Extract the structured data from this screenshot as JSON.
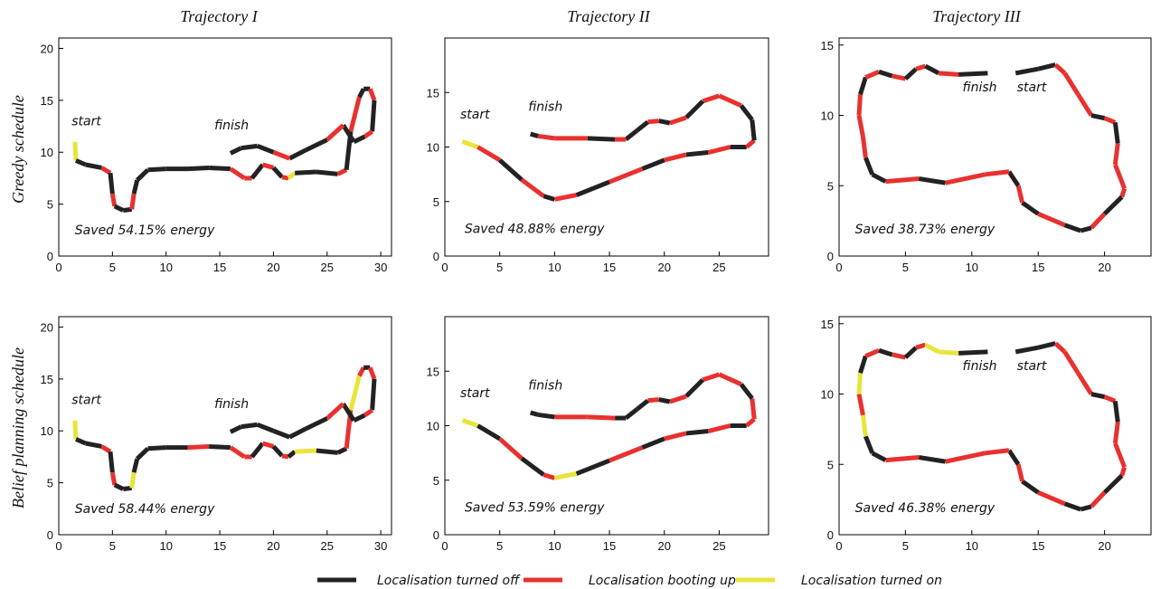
{
  "colors": {
    "off": "#222222",
    "booting": "#e8312f",
    "on": "#e9e43a"
  },
  "column_titles": [
    "Trajectory I",
    "Trajectory II",
    "Trajectory III"
  ],
  "row_titles": [
    "Greedy schedule",
    "Belief planning schedule"
  ],
  "legend": {
    "items": [
      {
        "label": "Localisation turned off",
        "color_key": "off"
      },
      {
        "label": "Localisation booting up",
        "color_key": "booting"
      },
      {
        "label": "Localisation turned on",
        "color_key": "on"
      }
    ]
  },
  "chart_data": [
    {
      "type": "line",
      "row": "Greedy schedule",
      "column": "Trajectory I",
      "xlim": [
        0,
        31
      ],
      "ylim": [
        0,
        21
      ],
      "xticks": [
        0,
        5,
        10,
        15,
        20,
        25,
        30
      ],
      "yticks": [
        0,
        5,
        10,
        15,
        20
      ],
      "annotations": [
        "start",
        "finish",
        "Saved 54.15% energy"
      ],
      "x": [
        1.5,
        1.6,
        2.5,
        4,
        4.8,
        5,
        5.2,
        6,
        6.8,
        7,
        7.3,
        8.3,
        10,
        12,
        14,
        16,
        17.3,
        18,
        19,
        20,
        20.8,
        21.4,
        22,
        24,
        26,
        26.8,
        27.2,
        28,
        28.4,
        29,
        29.4,
        29.2,
        28.5,
        27.5,
        26.5,
        25,
        23,
        21.5,
        20,
        18.5,
        17,
        16
      ],
      "y": [
        11,
        9.2,
        8.8,
        8.5,
        8,
        6,
        4.8,
        4.4,
        4.5,
        6,
        7.3,
        8.3,
        8.4,
        8.4,
        8.5,
        8.4,
        7.5,
        7.5,
        8.8,
        8.5,
        7.6,
        7.5,
        8,
        8.1,
        7.9,
        8.3,
        12,
        15.3,
        16.1,
        16.1,
        15,
        12,
        11.5,
        11,
        12.6,
        11.2,
        10.2,
        9.4,
        10,
        10.6,
        10.4,
        9.9
      ],
      "states": [
        "on",
        "off",
        "off",
        "booting",
        "off",
        "booting",
        "off",
        "off",
        "booting",
        "off",
        "off",
        "off",
        "off",
        "off",
        "off",
        "booting",
        "booting",
        "off",
        "booting",
        "off",
        "booting",
        "on",
        "off",
        "off",
        "booting",
        "off",
        "booting",
        "off",
        "off",
        "booting",
        "off",
        "booting",
        "off",
        "off",
        "booting",
        "off",
        "off",
        "booting",
        "off",
        "off",
        "off",
        "off"
      ]
    },
    {
      "type": "line",
      "row": "Greedy schedule",
      "column": "Trajectory II",
      "xlim": [
        0,
        29.5
      ],
      "ylim": [
        0,
        20
      ],
      "xticks": [
        0,
        5,
        10,
        15,
        20,
        25
      ],
      "yticks": [
        0,
        5,
        10,
        15
      ],
      "annotations": [
        "start",
        "finish",
        "Saved 48.88% energy"
      ],
      "x": [
        1.6,
        3,
        5,
        7,
        9,
        10,
        12,
        15,
        18,
        20,
        22,
        24,
        26,
        27.5,
        28.2,
        28,
        27,
        25,
        23.5,
        22,
        20.5,
        19.5,
        18.5,
        17.5,
        16.5,
        15.5,
        13,
        10,
        8.5,
        7.8
      ],
      "y": [
        10.5,
        10,
        8.8,
        7,
        5.5,
        5.2,
        5.6,
        6.8,
        8,
        8.8,
        9.3,
        9.5,
        10,
        10,
        10.6,
        12.5,
        13.8,
        14.7,
        14.2,
        12.7,
        12.2,
        12.4,
        12.3,
        11.5,
        10.7,
        10.7,
        10.8,
        10.8,
        11,
        11.2
      ],
      "states": [
        "on",
        "booting",
        "off",
        "booting",
        "off",
        "booting",
        "off",
        "booting",
        "off",
        "booting",
        "off",
        "booting",
        "off",
        "booting",
        "off",
        "off",
        "booting",
        "booting",
        "off",
        "booting",
        "off",
        "booting",
        "off",
        "off",
        "booting",
        "off",
        "booting",
        "booting",
        "off",
        "off"
      ]
    },
    {
      "type": "line",
      "row": "Greedy schedule",
      "column": "Trajectory III",
      "xlim": [
        0,
        23.5
      ],
      "ylim": [
        0,
        15.5
      ],
      "xticks": [
        0,
        5,
        10,
        15,
        20
      ],
      "yticks": [
        0,
        5,
        10,
        15
      ],
      "annotations": [
        "finish",
        "start",
        "Saved 38.73% energy"
      ],
      "x": [
        13.3,
        15,
        16.3,
        17,
        18,
        19,
        20,
        20.8,
        21,
        20.8,
        21.5,
        21.3,
        20,
        19,
        18.2,
        17,
        15,
        13.8,
        13.5,
        12.8,
        11,
        8,
        6,
        3.5,
        2.5,
        2,
        1.8,
        1.5,
        1.6,
        2,
        3,
        4,
        5,
        5.8,
        6.5,
        7.5,
        9,
        11.2
      ],
      "y": [
        13,
        13.3,
        13.6,
        13,
        11.5,
        10,
        9.8,
        9.5,
        8,
        6.5,
        4.8,
        4.2,
        3,
        2,
        1.8,
        2.2,
        3,
        3.8,
        5,
        6,
        5.8,
        5.2,
        5.5,
        5.3,
        5.8,
        7,
        8.5,
        10,
        11.5,
        12.7,
        13.1,
        12.8,
        12.6,
        13.3,
        13.5,
        13,
        12.9,
        13
      ],
      "states": [
        "off",
        "off",
        "booting",
        "booting",
        "booting",
        "off",
        "booting",
        "off",
        "booting",
        "booting",
        "booting",
        "off",
        "booting",
        "off",
        "off",
        "booting",
        "off",
        "booting",
        "off",
        "booting",
        "booting",
        "off",
        "booting",
        "off",
        "off",
        "booting",
        "booting",
        "booting",
        "off",
        "booting",
        "off",
        "booting",
        "off",
        "booting",
        "off",
        "booting",
        "off",
        "off"
      ]
    },
    {
      "type": "line",
      "row": "Belief planning schedule",
      "column": "Trajectory I",
      "xlim": [
        0,
        31
      ],
      "ylim": [
        0,
        21
      ],
      "xticks": [
        0,
        5,
        10,
        15,
        20,
        25,
        30
      ],
      "yticks": [
        0,
        5,
        10,
        15,
        20
      ],
      "annotations": [
        "start",
        "finish",
        "Saved 58.44% energy"
      ],
      "x": [
        1.5,
        1.6,
        2.5,
        4,
        4.8,
        5,
        5.2,
        6,
        6.8,
        7,
        7.3,
        8.3,
        10,
        12,
        14,
        16,
        17.3,
        18,
        19,
        20,
        20.8,
        21.4,
        22,
        24,
        26,
        26.8,
        27.2,
        28,
        28.4,
        29,
        29.4,
        29.2,
        28.5,
        27.5,
        26.5,
        25,
        23,
        21.5,
        20,
        18.5,
        17,
        16
      ],
      "y": [
        11,
        9.2,
        8.8,
        8.5,
        8,
        6,
        4.8,
        4.4,
        4.5,
        6,
        7.3,
        8.3,
        8.4,
        8.4,
        8.5,
        8.4,
        7.5,
        7.5,
        8.8,
        8.5,
        7.6,
        7.5,
        8,
        8.1,
        7.9,
        8.3,
        12,
        15.3,
        16.1,
        16.1,
        15,
        12,
        11.5,
        11,
        12.6,
        11.2,
        10.2,
        9.4,
        10,
        10.6,
        10.4,
        9.9
      ],
      "states": [
        "on",
        "off",
        "off",
        "booting",
        "off",
        "booting",
        "off",
        "off",
        "on",
        "off",
        "off",
        "off",
        "off",
        "booting",
        "off",
        "booting",
        "booting",
        "off",
        "booting",
        "off",
        "booting",
        "off",
        "on",
        "off",
        "off",
        "booting",
        "on",
        "booting",
        "off",
        "booting",
        "off",
        "booting",
        "off",
        "off",
        "booting",
        "off",
        "off",
        "off",
        "off",
        "off",
        "off",
        "off"
      ]
    },
    {
      "type": "line",
      "row": "Belief planning schedule",
      "column": "Trajectory II",
      "xlim": [
        0,
        29.5
      ],
      "ylim": [
        0,
        20
      ],
      "xticks": [
        0,
        5,
        10,
        15,
        20,
        25
      ],
      "yticks": [
        0,
        5,
        10,
        15
      ],
      "annotations": [
        "start",
        "finish",
        "Saved 53.59% energy"
      ],
      "x": [
        1.6,
        3,
        5,
        7,
        9,
        10,
        12,
        15,
        18,
        20,
        22,
        24,
        26,
        27.5,
        28.2,
        28,
        27,
        25,
        23.5,
        22,
        20.5,
        19.5,
        18.5,
        17.5,
        16.5,
        15.5,
        13,
        10,
        8.5,
        7.8
      ],
      "y": [
        10.5,
        10,
        8.8,
        7,
        5.5,
        5.2,
        5.6,
        6.8,
        8,
        8.8,
        9.3,
        9.5,
        10,
        10,
        10.6,
        12.5,
        13.8,
        14.7,
        14.2,
        12.7,
        12.2,
        12.4,
        12.3,
        11.5,
        10.7,
        10.7,
        10.8,
        10.8,
        11,
        11.2
      ],
      "states": [
        "on",
        "off",
        "booting",
        "off",
        "booting",
        "on",
        "off",
        "booting",
        "off",
        "booting",
        "off",
        "booting",
        "off",
        "booting",
        "booting",
        "off",
        "booting",
        "booting",
        "off",
        "booting",
        "off",
        "booting",
        "off",
        "off",
        "off",
        "booting",
        "booting",
        "off",
        "off",
        "off"
      ]
    },
    {
      "type": "line",
      "row": "Belief planning schedule",
      "column": "Trajectory III",
      "xlim": [
        0,
        23.5
      ],
      "ylim": [
        0,
        15.5
      ],
      "xticks": [
        0,
        5,
        10,
        15,
        20
      ],
      "yticks": [
        0,
        5,
        10,
        15
      ],
      "annotations": [
        "finish",
        "start",
        "Saved 46.38% energy"
      ],
      "x": [
        13.3,
        15,
        16.3,
        17,
        18,
        19,
        20,
        20.8,
        21,
        20.8,
        21.5,
        21.3,
        20,
        19,
        18.2,
        17,
        15,
        13.8,
        13.5,
        12.8,
        11,
        8,
        6,
        3.5,
        2.5,
        2,
        1.8,
        1.5,
        1.6,
        2,
        3,
        4,
        5,
        5.8,
        6.5,
        7.5,
        9,
        11.2
      ],
      "y": [
        13,
        13.3,
        13.6,
        13,
        11.5,
        10,
        9.8,
        9.5,
        8,
        6.5,
        4.8,
        4.2,
        3,
        2,
        1.8,
        2.2,
        3,
        3.8,
        5,
        6,
        5.8,
        5.2,
        5.5,
        5.3,
        5.8,
        7,
        8.5,
        10,
        11.5,
        12.7,
        13.1,
        12.8,
        12.6,
        13.3,
        13.5,
        13,
        12.9,
        13
      ],
      "states": [
        "off",
        "off",
        "booting",
        "booting",
        "booting",
        "off",
        "booting",
        "off",
        "booting",
        "booting",
        "booting",
        "off",
        "booting",
        "off",
        "off",
        "booting",
        "off",
        "booting",
        "off",
        "booting",
        "booting",
        "off",
        "booting",
        "off",
        "off",
        "on",
        "booting",
        "on",
        "off",
        "booting",
        "off",
        "booting",
        "off",
        "booting",
        "on",
        "on",
        "off",
        "off"
      ]
    }
  ]
}
